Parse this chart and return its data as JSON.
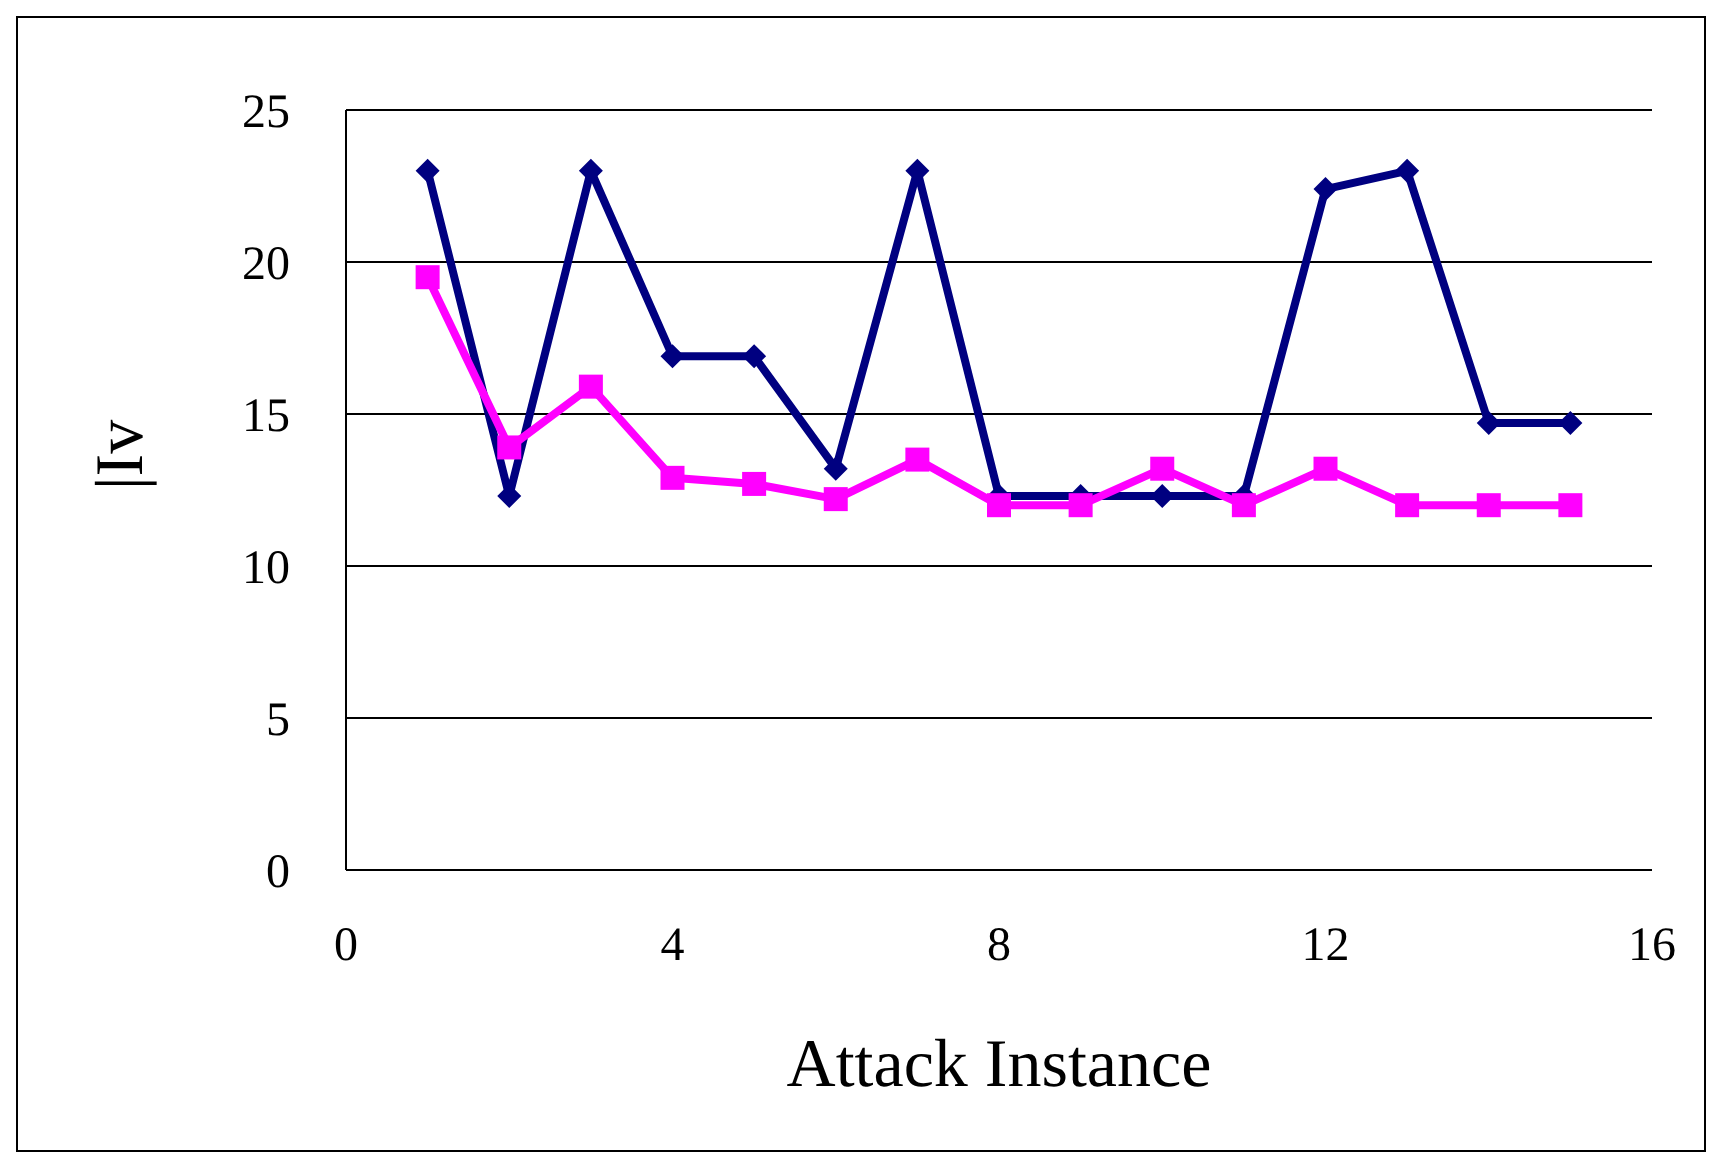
{
  "chart_data": {
    "type": "line",
    "xlabel": "Attack Instance",
    "ylabel": "|Iv",
    "x": [
      1,
      2,
      3,
      4,
      5,
      6,
      7,
      8,
      9,
      10,
      11,
      12,
      13,
      14,
      15
    ],
    "series": [
      {
        "color": "#000080",
        "marker": "diamond",
        "values": [
          23.0,
          12.3,
          23.0,
          16.9,
          16.9,
          13.2,
          23.0,
          12.3,
          12.3,
          12.3,
          12.3,
          22.4,
          23.0,
          14.7,
          14.7
        ]
      },
      {
        "color": "#ff00ff",
        "marker": "square",
        "values": [
          19.5,
          13.9,
          15.9,
          12.9,
          12.7,
          12.2,
          13.5,
          12.0,
          12.0,
          13.2,
          12.0,
          13.2,
          12.0,
          12.0,
          12.0
        ]
      }
    ],
    "xlim": [
      0,
      16
    ],
    "xticks": [
      0,
      4,
      8,
      12,
      16
    ],
    "ylim": [
      0,
      25
    ],
    "yticks": [
      0,
      5,
      10,
      15,
      20,
      25
    ],
    "grid": "y",
    "legend": false,
    "line_style": "solid"
  }
}
